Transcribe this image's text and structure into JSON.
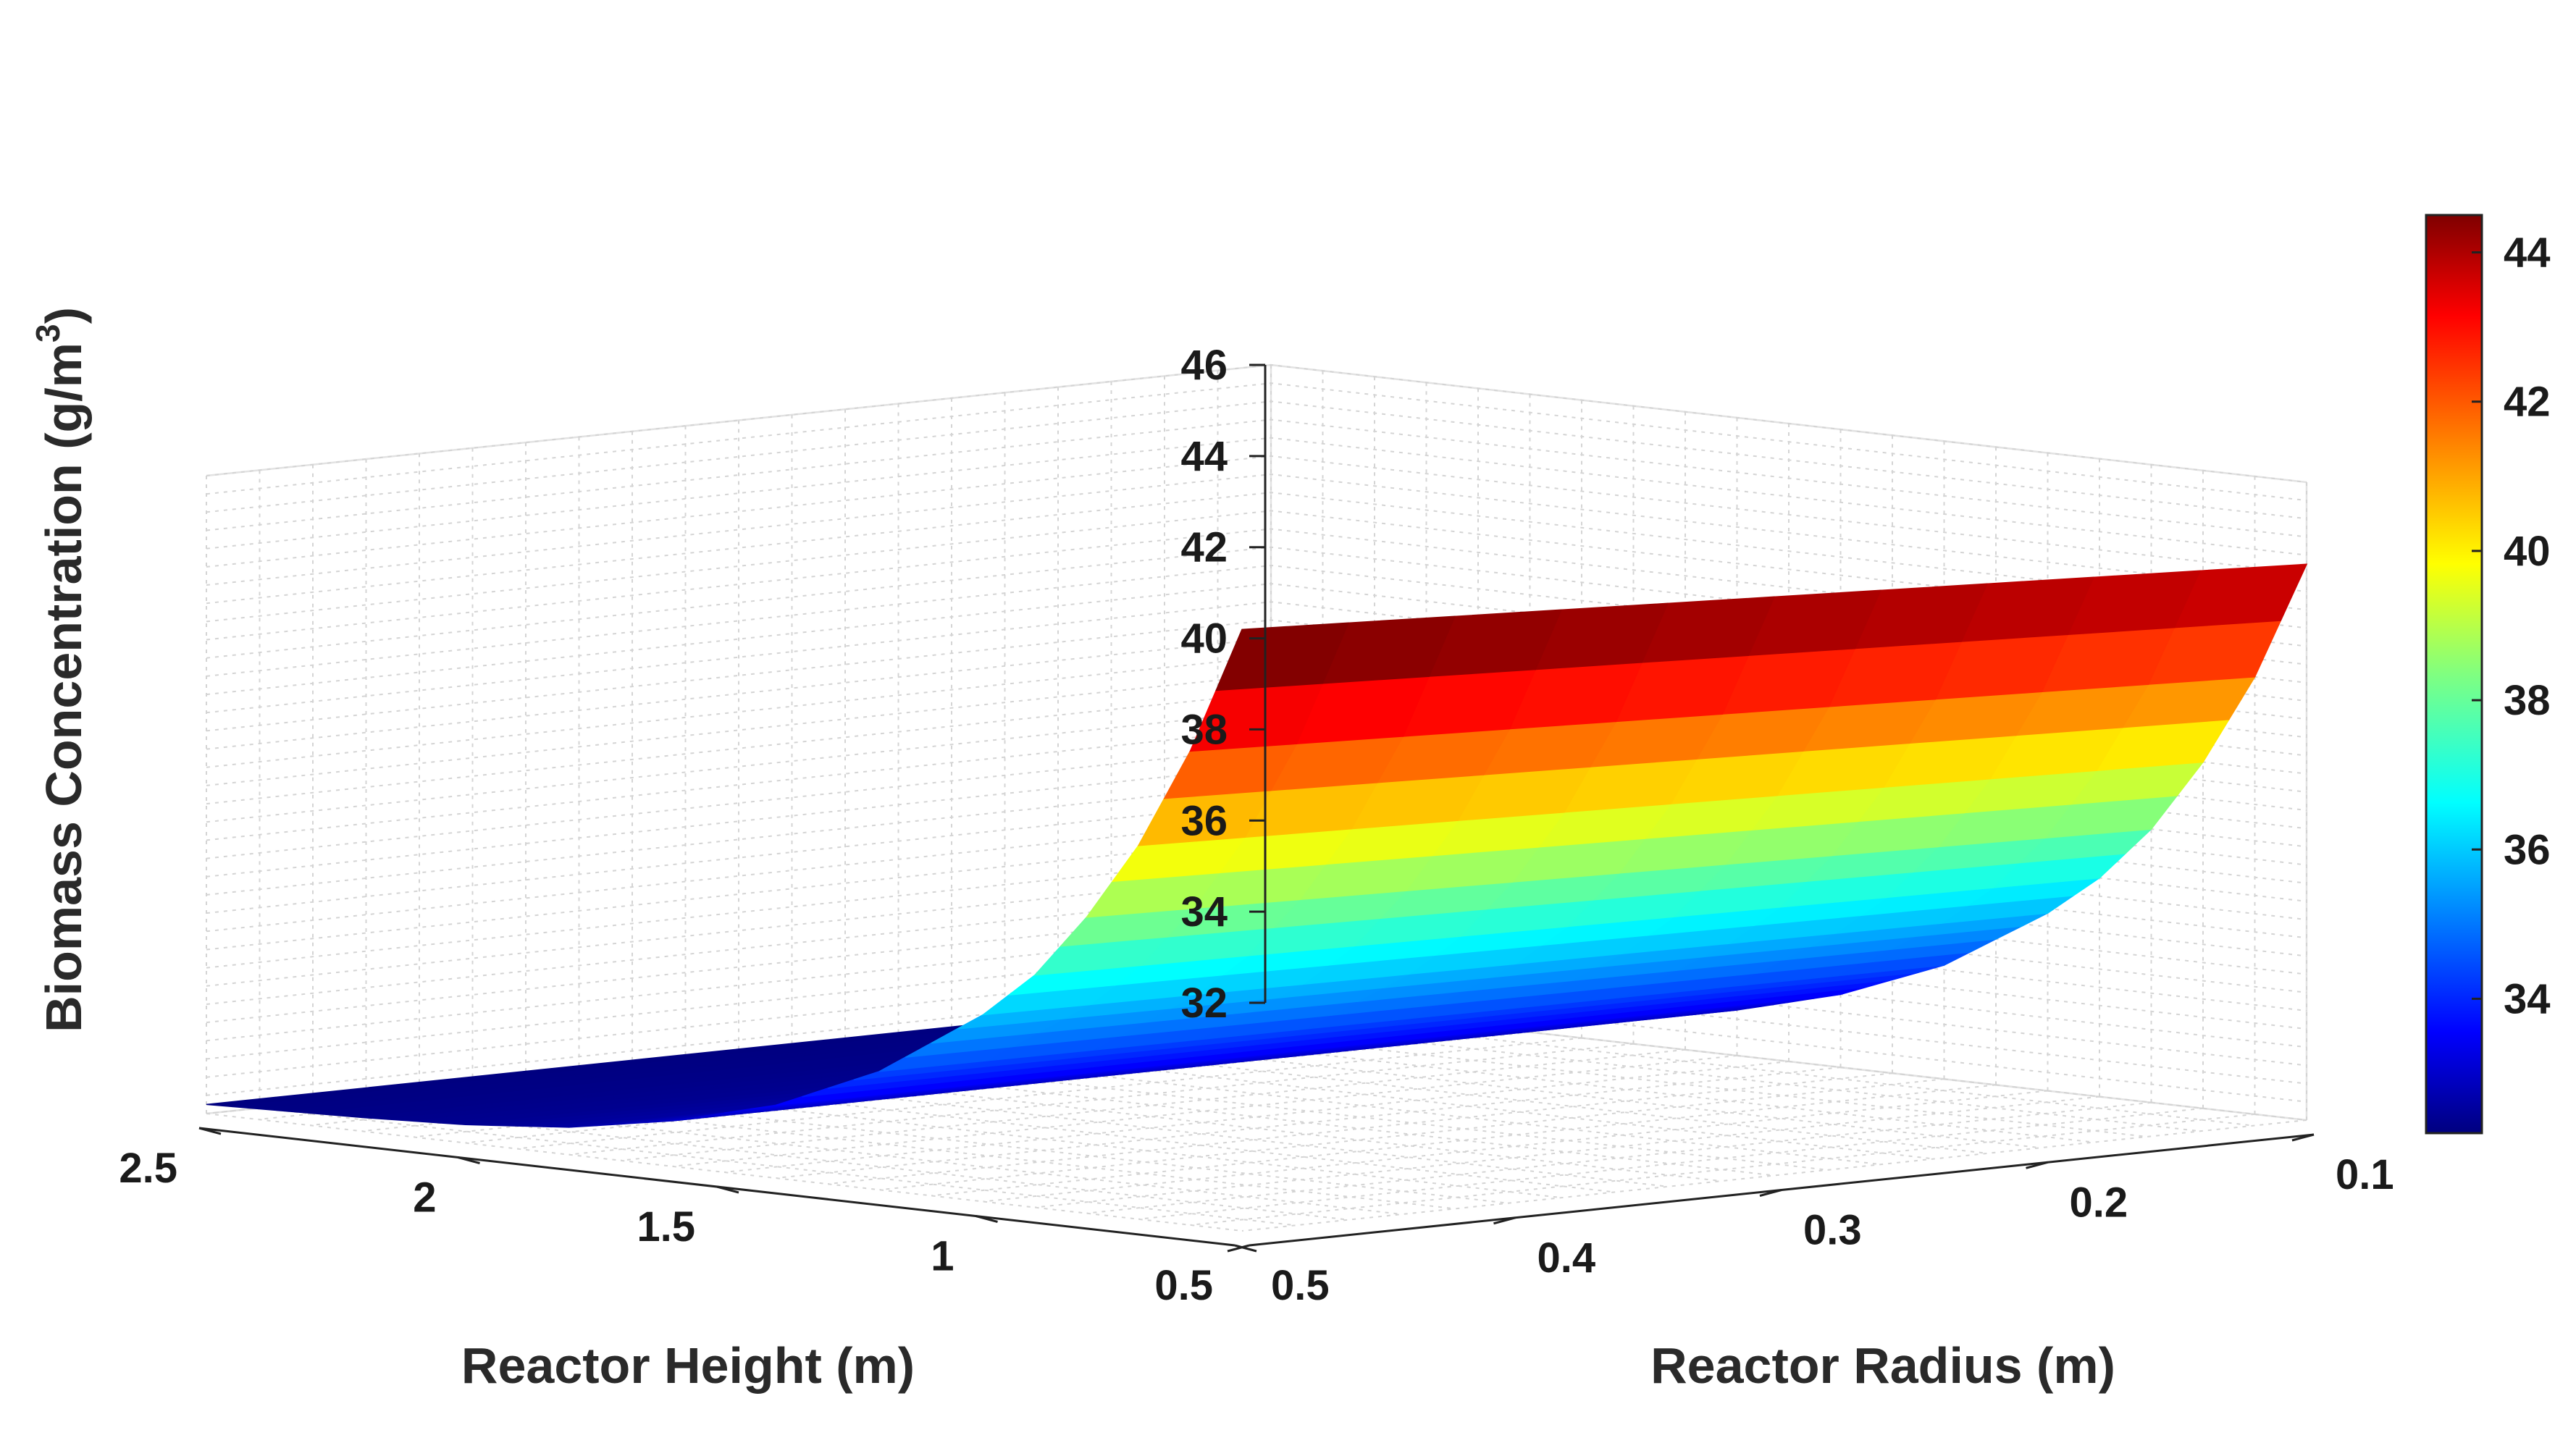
{
  "chart_data": {
    "type": "surface",
    "colormap": "jet",
    "zlabel": "Biomass Concentration (g/m",
    "zlabel_sup": "3",
    "zlabel_end": ")",
    "xlabel": "Reactor Radius (m)",
    "ylabel": "Reactor Height (m)",
    "x_ticks": [
      "0.1",
      "0.2",
      "0.3",
      "0.4",
      "0.5"
    ],
    "y_ticks": [
      "0.5",
      "1",
      "1.5",
      "2",
      "2.5"
    ],
    "z_ticks": [
      "32",
      "34",
      "36",
      "38",
      "40",
      "42",
      "44",
      "46"
    ],
    "colorbar_ticks": [
      "34",
      "36",
      "38",
      "40",
      "42",
      "44"
    ],
    "colorbar_range": [
      32.2,
      44.5
    ],
    "xlim": [
      0.1,
      0.5
    ],
    "ylim": [
      0.5,
      2.5
    ],
    "zlim": [
      32,
      46
    ],
    "height_samples": [
      0.5,
      0.6,
      0.7,
      0.8,
      0.9,
      1.0,
      1.2,
      1.4,
      1.6,
      1.8,
      2.0,
      2.2,
      2.5
    ],
    "conc_at_radius_0_1": [
      44.2,
      41.6,
      39.6,
      38.0,
      36.8,
      35.9,
      34.5,
      33.6,
      33.0,
      32.6,
      32.4,
      32.3,
      32.2
    ],
    "conc_at_radius_0_5": [
      45.2,
      42.4,
      40.2,
      38.5,
      37.1,
      36.1,
      34.6,
      33.6,
      33.0,
      32.6,
      32.4,
      32.3,
      32.2
    ]
  }
}
